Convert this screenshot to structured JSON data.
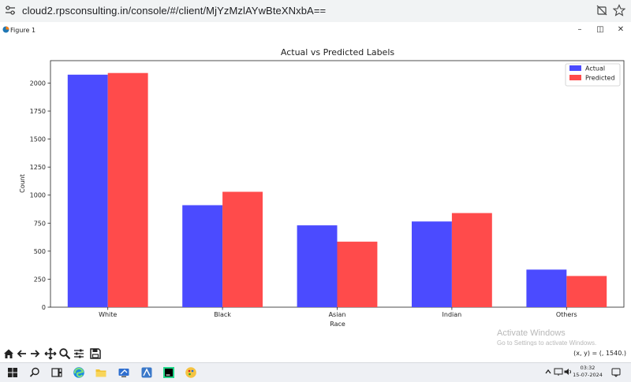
{
  "browser": {
    "url": "cloud2.rpsconsulting.in/console/#/client/MjYzMzlAYwBteXNxbA=="
  },
  "window": {
    "title": "Figure 1",
    "controls": {
      "minimize": "–",
      "maximize": "◫",
      "close": "✕"
    }
  },
  "chart_data": {
    "type": "bar",
    "title": "Actual vs Predicted Labels",
    "xlabel": "Race",
    "ylabel": "Count",
    "categories": [
      "White",
      "Black",
      "Asian",
      "Indian",
      "Others"
    ],
    "series": [
      {
        "name": "Actual",
        "color": "#4b4bff",
        "values": [
          2075,
          910,
          730,
          765,
          335
        ]
      },
      {
        "name": "Predicted",
        "color": "#ff4b4b",
        "values": [
          2090,
          1030,
          585,
          840,
          278
        ]
      }
    ],
    "yticks": [
      0,
      250,
      500,
      750,
      1000,
      1250,
      1500,
      1750,
      2000
    ],
    "ylim": [
      0,
      2200
    ],
    "legend": "top-right",
    "grid": false
  },
  "watermark": {
    "line1": "Activate Windows",
    "line2": "Go to Settings to activate Windows."
  },
  "toolbar": {
    "icons": [
      "home-icon",
      "back-arrow-icon",
      "forward-arrow-icon",
      "pan-icon",
      "zoom-icon",
      "configure-subplots-icon",
      "save-icon"
    ],
    "coordinates": "(x, y) = (, 1540.)"
  },
  "taskbar": {
    "time": "03:32",
    "date": "15-07-2024"
  }
}
